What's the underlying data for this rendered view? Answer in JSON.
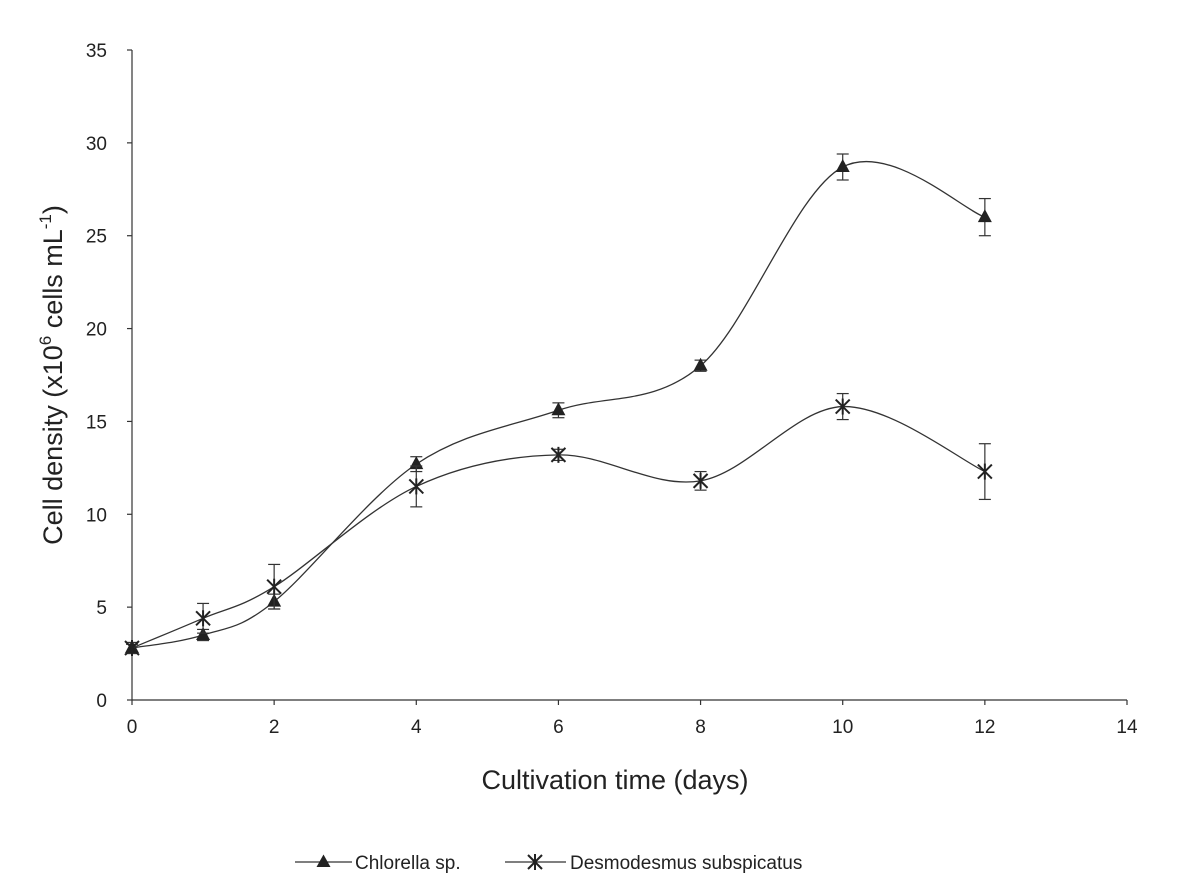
{
  "chart_data": {
    "type": "line",
    "title": "",
    "xlabel": "Cultivation time (days)",
    "ylabel_parts": [
      "Cell density (x10",
      "6",
      " cells mL",
      "-1",
      ")"
    ],
    "xlim": [
      0,
      14
    ],
    "ylim": [
      0,
      35
    ],
    "xticks": [
      "0",
      "2",
      "4",
      "6",
      "8",
      "10",
      "12",
      "14"
    ],
    "yticks": [
      "0",
      "5",
      "10",
      "15",
      "20",
      "25",
      "30",
      "35"
    ],
    "grid": false,
    "legend_position": "bottom",
    "x": [
      0,
      1,
      2,
      4,
      6,
      8,
      10,
      12
    ],
    "series": [
      {
        "name": "Chlorella sp.",
        "marker": "triangle",
        "color": "#333333",
        "values": [
          2.8,
          3.5,
          5.3,
          12.7,
          15.6,
          18.0,
          28.7,
          26.0
        ],
        "errors": [
          0.2,
          0.3,
          0.4,
          0.4,
          0.4,
          0.3,
          0.7,
          1.0
        ]
      },
      {
        "name": "Desmodesmus subspicatus",
        "marker": "asterisk",
        "color": "#333333",
        "values": [
          2.8,
          4.4,
          6.1,
          11.5,
          13.2,
          11.8,
          15.8,
          12.3
        ],
        "errors": [
          0.3,
          0.8,
          1.2,
          1.1,
          0.3,
          0.5,
          0.7,
          1.5
        ]
      }
    ]
  }
}
